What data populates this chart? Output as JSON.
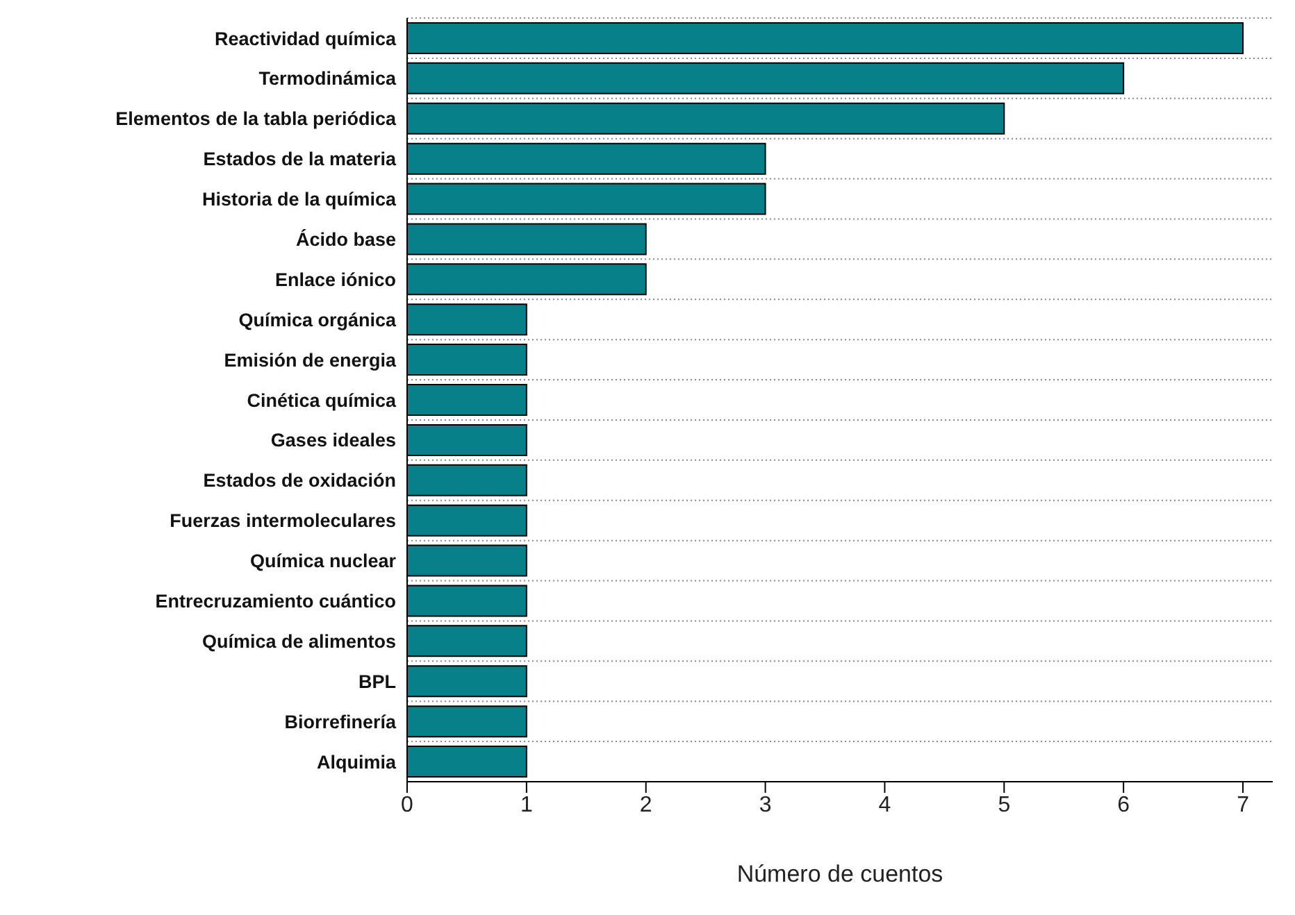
{
  "chart_data": {
    "type": "bar",
    "orientation": "horizontal",
    "xlabel": "Número de cuentos",
    "categories": [
      "Reactividad química",
      "Termodinámica",
      "Elementos de la tabla periódica",
      "Estados de la materia",
      "Historia de la química",
      "Ácido base",
      "Enlace iónico",
      "Química orgánica",
      "Emisión de energia",
      "Cinética química",
      "Gases ideales",
      "Estados de oxidación",
      "Fuerzas intermoleculares",
      "Química nuclear",
      "Entrecruzamiento cuántico",
      "Química de alimentos",
      "BPL",
      "Biorrefinería",
      "Alquimia"
    ],
    "values": [
      7,
      6,
      5,
      3,
      3,
      2,
      2,
      1,
      1,
      1,
      1,
      1,
      1,
      1,
      1,
      1,
      1,
      1,
      1
    ],
    "color": "#08808a",
    "xlim": [
      0,
      7.25
    ],
    "xticks": [
      0,
      1,
      2,
      3,
      4,
      5,
      6,
      7
    ],
    "grid": "y"
  }
}
